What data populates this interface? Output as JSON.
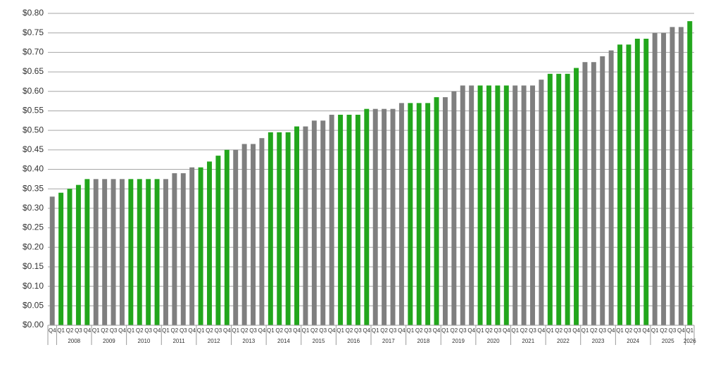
{
  "chart_data": {
    "type": "bar",
    "ylim": [
      0,
      0.8
    ],
    "yticks": [
      {
        "value": 0,
        "label": "$0.00"
      },
      {
        "value": 0.05,
        "label": "$0.05"
      },
      {
        "value": 0.1,
        "label": "$0.10"
      },
      {
        "value": 0.15,
        "label": "$0.15"
      },
      {
        "value": 0.2,
        "label": "$0.20"
      },
      {
        "value": 0.25,
        "label": "$0.25"
      },
      {
        "value": 0.3,
        "label": "$0.30"
      },
      {
        "value": 0.35,
        "label": "$0.35"
      },
      {
        "value": 0.4,
        "label": "$0.40"
      },
      {
        "value": 0.45,
        "label": "$0.45"
      },
      {
        "value": 0.5,
        "label": "$0.50"
      },
      {
        "value": 0.55,
        "label": "$0.55"
      },
      {
        "value": 0.6,
        "label": "$0.60"
      },
      {
        "value": 0.65,
        "label": "$0.65"
      },
      {
        "value": 0.7,
        "label": "$0.70"
      },
      {
        "value": 0.75,
        "label": "$0.75"
      },
      {
        "value": 0.8,
        "label": "$0.80"
      }
    ],
    "grid": true,
    "groups": [
      {
        "year": null,
        "quarters": [
          "Q4"
        ],
        "values": [
          0.33
        ],
        "color": "#7f7f7f"
      },
      {
        "year": "2008",
        "quarters": [
          "Q1",
          "Q2",
          "Q3",
          "Q4"
        ],
        "values": [
          0.34,
          0.35,
          0.36,
          0.375
        ],
        "color": "#22a61c"
      },
      {
        "year": "2009",
        "quarters": [
          "Q1",
          "Q2",
          "Q3",
          "Q4"
        ],
        "values": [
          0.375,
          0.375,
          0.375,
          0.375
        ],
        "color": "#7f7f7f"
      },
      {
        "year": "2010",
        "quarters": [
          "Q1",
          "Q2",
          "Q3",
          "Q4"
        ],
        "values": [
          0.375,
          0.375,
          0.375,
          0.375
        ],
        "color": "#22a61c"
      },
      {
        "year": "2011",
        "quarters": [
          "Q1",
          "Q2",
          "Q3",
          "Q4"
        ],
        "values": [
          0.375,
          0.39,
          0.39,
          0.405
        ],
        "color": "#7f7f7f"
      },
      {
        "year": "2012",
        "quarters": [
          "Q1",
          "Q2",
          "Q3",
          "Q4"
        ],
        "values": [
          0.405,
          0.42,
          0.435,
          0.45
        ],
        "color": "#22a61c"
      },
      {
        "year": "2013",
        "quarters": [
          "Q1",
          "Q2",
          "Q3",
          "Q4"
        ],
        "values": [
          0.45,
          0.465,
          0.465,
          0.48
        ],
        "color": "#7f7f7f"
      },
      {
        "year": "2014",
        "quarters": [
          "Q1",
          "Q2",
          "Q3",
          "Q4"
        ],
        "values": [
          0.495,
          0.495,
          0.495,
          0.51
        ],
        "color": "#22a61c"
      },
      {
        "year": "2015",
        "quarters": [
          "Q1",
          "Q2",
          "Q3",
          "Q4"
        ],
        "values": [
          0.51,
          0.525,
          0.525,
          0.54
        ],
        "color": "#7f7f7f"
      },
      {
        "year": "2016",
        "quarters": [
          "Q1",
          "Q2",
          "Q3",
          "Q4"
        ],
        "values": [
          0.54,
          0.54,
          0.54,
          0.555
        ],
        "color": "#22a61c"
      },
      {
        "year": "2017",
        "quarters": [
          "Q1",
          "Q2",
          "Q3",
          "Q4"
        ],
        "values": [
          0.555,
          0.555,
          0.555,
          0.57
        ],
        "color": "#7f7f7f"
      },
      {
        "year": "2018",
        "quarters": [
          "Q1",
          "Q2",
          "Q3",
          "Q4"
        ],
        "values": [
          0.57,
          0.57,
          0.57,
          0.585
        ],
        "color": "#22a61c"
      },
      {
        "year": "2019",
        "quarters": [
          "Q1",
          "Q2",
          "Q3",
          "Q4"
        ],
        "values": [
          0.585,
          0.6,
          0.615,
          0.615
        ],
        "color": "#7f7f7f"
      },
      {
        "year": "2020",
        "quarters": [
          "Q1",
          "Q2",
          "Q3",
          "Q4"
        ],
        "values": [
          0.615,
          0.615,
          0.615,
          0.615
        ],
        "color": "#22a61c"
      },
      {
        "year": "2021",
        "quarters": [
          "Q1",
          "Q2",
          "Q3",
          "Q4"
        ],
        "values": [
          0.615,
          0.615,
          0.615,
          0.63
        ],
        "color": "#7f7f7f"
      },
      {
        "year": "2022",
        "quarters": [
          "Q1",
          "Q2",
          "Q3",
          "Q4"
        ],
        "values": [
          0.645,
          0.645,
          0.645,
          0.66
        ],
        "color": "#22a61c"
      },
      {
        "year": "2023",
        "quarters": [
          "Q1",
          "Q2",
          "Q3",
          "Q4"
        ],
        "values": [
          0.675,
          0.675,
          0.69,
          0.705
        ],
        "color": "#7f7f7f"
      },
      {
        "year": "2024",
        "quarters": [
          "Q1",
          "Q2",
          "Q3",
          "Q4"
        ],
        "values": [
          0.72,
          0.72,
          0.735,
          0.735
        ],
        "color": "#22a61c"
      },
      {
        "year": "2025",
        "quarters": [
          "Q1",
          "Q2",
          "Q3",
          "Q4"
        ],
        "values": [
          0.75,
          0.75,
          0.765,
          0.765
        ],
        "color": "#7f7f7f"
      },
      {
        "year": "2026",
        "quarters": [
          "Q1"
        ],
        "values": [
          0.78
        ],
        "color": "#22a61c"
      }
    ]
  }
}
